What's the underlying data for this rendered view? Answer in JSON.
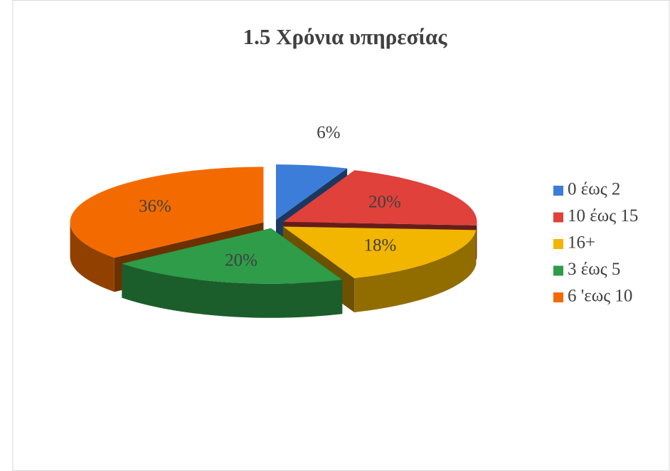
{
  "chart_data": {
    "type": "pie3d",
    "title": "1.5 Χρόνια υπηρεσίας",
    "categories": [
      "0 έως 2",
      "10 έως 15",
      "16+",
      "3 έως 5",
      "6 'εως 10"
    ],
    "values": [
      6,
      20,
      18,
      20,
      36
    ],
    "value_labels": [
      "6%",
      "20%",
      "18%",
      "20%",
      "36%"
    ],
    "colors": [
      "#3b7dd8",
      "#e0413a",
      "#f2b500",
      "#2e9c48",
      "#f36b00"
    ],
    "legend": "right"
  }
}
